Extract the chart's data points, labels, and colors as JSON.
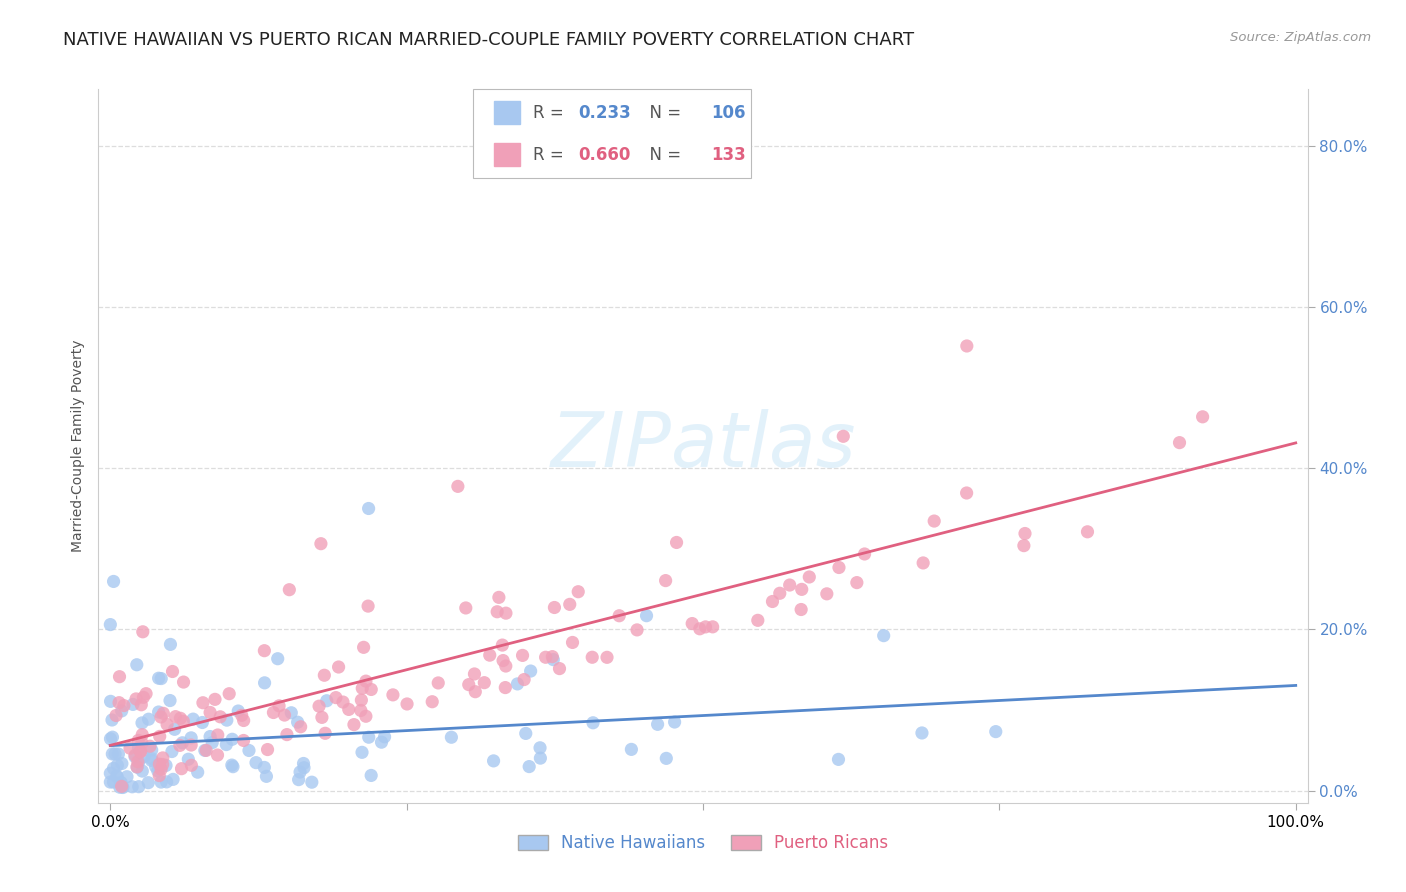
{
  "title": "NATIVE HAWAIIAN VS PUERTO RICAN MARRIED-COUPLE FAMILY POVERTY CORRELATION CHART",
  "source": "Source: ZipAtlas.com",
  "ylabel": "Married-Couple Family Poverty",
  "series": [
    {
      "name": "Native Hawaiians",
      "R": 0.233,
      "N": 106,
      "color": "#a8c8f0",
      "line_color": "#5588cc",
      "seed": 42
    },
    {
      "name": "Puerto Ricans",
      "R": 0.66,
      "N": 133,
      "color": "#f0a0b8",
      "line_color": "#e06080",
      "seed": 77
    }
  ],
  "background_color": "#ffffff",
  "grid_color": "#dddddd",
  "title_fontsize": 13,
  "axis_label_fontsize": 10,
  "tick_fontsize": 11,
  "tick_color": "#5588cc",
  "watermark_color": "#d0e8f8",
  "watermark_alpha": 0.6
}
